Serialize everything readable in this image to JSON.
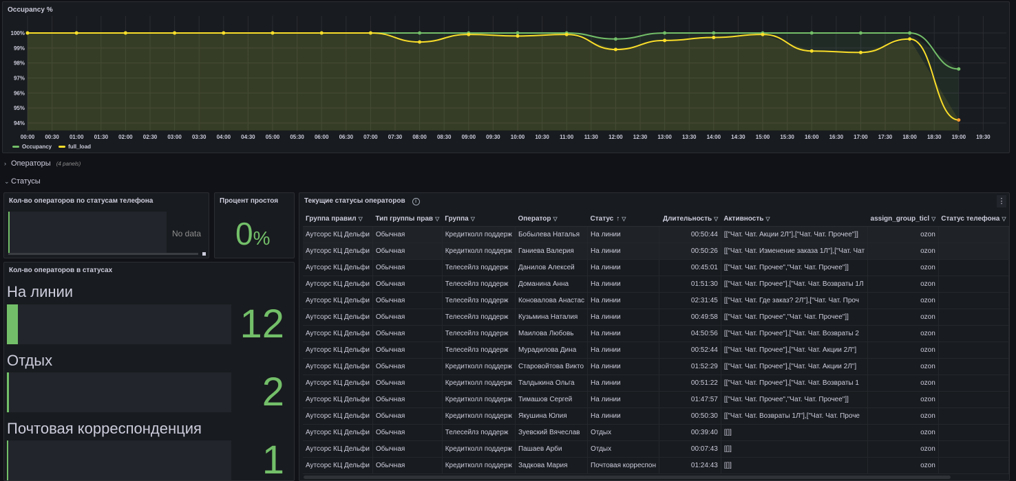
{
  "colors": {
    "green": "#73bf69",
    "yellow": "#fade2a",
    "orange": "#ff9830",
    "bg": "#111217",
    "panel": "#181b1f"
  },
  "occupancy_panel": {
    "title": "Occupancy %",
    "legend": [
      {
        "name": "Occupancy",
        "color": "#73bf69"
      },
      {
        "name": "full_load",
        "color": "#fade2a"
      }
    ]
  },
  "chart_data": {
    "type": "line",
    "title": "Occupancy %",
    "x_ticks": [
      "00:00",
      "00:30",
      "01:00",
      "01:30",
      "02:00",
      "02:30",
      "03:00",
      "03:30",
      "04:00",
      "04:30",
      "05:00",
      "05:30",
      "06:00",
      "06:30",
      "07:00",
      "07:30",
      "08:00",
      "08:30",
      "09:00",
      "09:30",
      "10:00",
      "10:30",
      "11:00",
      "11:30",
      "12:00",
      "12:30",
      "13:00",
      "13:30",
      "14:00",
      "14:30",
      "15:00",
      "15:30",
      "16:00",
      "16:30",
      "17:00",
      "17:30",
      "18:00",
      "18:30",
      "19:00",
      "19:30"
    ],
    "y_ticks": [
      "100%",
      "99%",
      "98%",
      "97%",
      "96%",
      "95%",
      "94%"
    ],
    "ylim": [
      93.5,
      100.2
    ],
    "x": [
      "00:00",
      "01:00",
      "02:00",
      "03:00",
      "04:00",
      "05:00",
      "06:00",
      "07:00",
      "08:00",
      "09:00",
      "10:00",
      "11:00",
      "12:00",
      "13:00",
      "14:00",
      "15:00",
      "16:00",
      "17:00",
      "18:00",
      "19:00"
    ],
    "series": [
      {
        "name": "Occupancy",
        "color": "#73bf69",
        "values": [
          100,
          100,
          100,
          100,
          100,
          100,
          100,
          100,
          100,
          100,
          100,
          100,
          99.6,
          100,
          100,
          100,
          100,
          100,
          100,
          97.6
        ]
      },
      {
        "name": "full_load",
        "color": "#fade2a",
        "values": [
          100,
          100,
          100,
          100,
          100,
          100,
          100,
          100,
          99.4,
          99.9,
          99.8,
          99.9,
          98.9,
          99.5,
          99.7,
          99.9,
          98.8,
          98.7,
          99.6,
          94.2
        ]
      }
    ],
    "grid": true,
    "legend_position": "bottom-left"
  },
  "rows": {
    "operators": {
      "label": "Операторы",
      "sub": "(4 panels)"
    },
    "statuses": {
      "label": "Статусы"
    }
  },
  "phone_status_panel": {
    "title": "Кол-во операторов по статусам телефона",
    "no_data": "No data"
  },
  "idle_panel": {
    "title": "Процент простоя",
    "value": "0",
    "unit": "%"
  },
  "status_count_panel": {
    "title": "Кол-во операторов в статусах",
    "max": 12,
    "items": [
      {
        "label": "На линии",
        "value": "12",
        "fraction": 0.05
      },
      {
        "label": "Отдых",
        "value": "2",
        "fraction": 0.01
      },
      {
        "label": "Почтовая корреспонденция",
        "value": "1",
        "fraction": 0.01
      }
    ]
  },
  "current_status_panel": {
    "title": "Текущие статусы операторов",
    "columns": [
      "Группа правил",
      "Тип группы прав",
      "Группа",
      "Оператор",
      "Статус",
      "Длительность",
      "Активность",
      "assign_group_ticl",
      "Статус телефона"
    ],
    "sort_indicator": "↑",
    "rows": [
      [
        "Аутсорс КЦ Дельфи",
        "Обычная",
        "Кредитколл поддерж",
        "Бобылева Наталья",
        "На линии",
        "00:50:44",
        "[[\"Чат. Чат. Акции 2Л\"],[\"Чат. Чат. Прочее\"]]",
        "ozon",
        ""
      ],
      [
        "Аутсорс КЦ Дельфи",
        "Обычная",
        "Кредитколл поддерж",
        "Ганиева Валерия",
        "На линии",
        "00:50:26",
        "[[\"Чат. Чат. Изменение заказа 1Л\"],[\"Чат. Чат",
        "ozon",
        ""
      ],
      [
        "Аутсорс КЦ Дельфи",
        "Обычная",
        "Телесейлз поддерж",
        "Данилов Алексей",
        "На линии",
        "00:45:01",
        "[[\"Чат. Чат. Прочее\",\"Чат. Чат. Прочее\"]]",
        "ozon",
        ""
      ],
      [
        "Аутсорс КЦ Дельфи",
        "Обычная",
        "Телесейлз поддерж",
        "Доманина Анна",
        "На линии",
        "01:51:30",
        "[[\"Чат. Чат. Прочее\"],[\"Чат. Чат. Возвраты 1Л",
        "ozon",
        ""
      ],
      [
        "Аутсорс КЦ Дельфи",
        "Обычная",
        "Телесейлз поддерж",
        "Коновалова Анастас",
        "На линии",
        "02:31:45",
        "[[\"Чат. Чат. Где заказ? 2Л\"],[\"Чат. Чат. Проч",
        "ozon",
        ""
      ],
      [
        "Аутсорс КЦ Дельфи",
        "Обычная",
        "Телесейлз поддерж",
        "Кузьмина Наталия",
        "На линии",
        "00:49:58",
        "[[\"Чат. Чат. Прочее\",\"Чат. Чат. Прочее\"]]",
        "ozon",
        ""
      ],
      [
        "Аутсорс КЦ Дельфи",
        "Обычная",
        "Телесейлз поддерж",
        "Маилова Любовь",
        "На линии",
        "04:50:56",
        "[[\"Чат. Чат. Прочее\"],[\"Чат. Чат. Возвраты 2",
        "ozon",
        ""
      ],
      [
        "Аутсорс КЦ Дельфи",
        "Обычная",
        "Телесейлз поддерж",
        "Мурадилова Дина",
        "На линии",
        "00:52:44",
        "[[\"Чат. Чат. Прочее\"],[\"Чат. Чат. Акции 2Л\"]",
        "ozon",
        ""
      ],
      [
        "Аутсорс КЦ Дельфи",
        "Обычная",
        "Кредитколл поддерж",
        "Старовойтова Викто",
        "На линии",
        "01:52:29",
        "[[\"Чат. Чат. Прочее\"],[\"Чат. Чат. Акции 2Л\"]",
        "ozon",
        ""
      ],
      [
        "Аутсорс КЦ Дельфи",
        "Обычная",
        "Кредитколл поддерж",
        "Талдыкина Ольга",
        "На линии",
        "00:51:22",
        "[[\"Чат. Чат. Прочее\"],[\"Чат. Чат. Возвраты 1",
        "ozon",
        ""
      ],
      [
        "Аутсорс КЦ Дельфи",
        "Обычная",
        "Кредитколл поддерж",
        "Тимашов Сергей",
        "На линии",
        "01:47:57",
        "[[\"Чат. Чат. Прочее\",\"Чат. Чат. Прочее\"]]",
        "ozon",
        ""
      ],
      [
        "Аутсорс КЦ Дельфи",
        "Обычная",
        "Кредитколл поддерж",
        "Якушина Юлия",
        "На линии",
        "00:50:30",
        "[[\"Чат. Чат. Возвраты 1Л\"],[\"Чат. Чат. Проче",
        "ozon",
        ""
      ],
      [
        "Аутсорс КЦ Дельфи",
        "Обычная",
        "Телесейлз поддерж",
        "Зуевский Вячеслав",
        "Отдых",
        "00:39:40",
        "[[]]",
        "ozon",
        ""
      ],
      [
        "Аутсорс КЦ Дельфи",
        "Обычная",
        "Кредитколл поддерж",
        "Пашаев Арби",
        "Отдых",
        "00:07:43",
        "[[]]",
        "ozon",
        ""
      ],
      [
        "Аутсорс КЦ Дельфи",
        "Обычная",
        "Кредитколл поддерж",
        "Задкова Мария",
        "Почтовая корреспон",
        "01:24:43",
        "[[]]",
        "ozon",
        ""
      ]
    ]
  }
}
